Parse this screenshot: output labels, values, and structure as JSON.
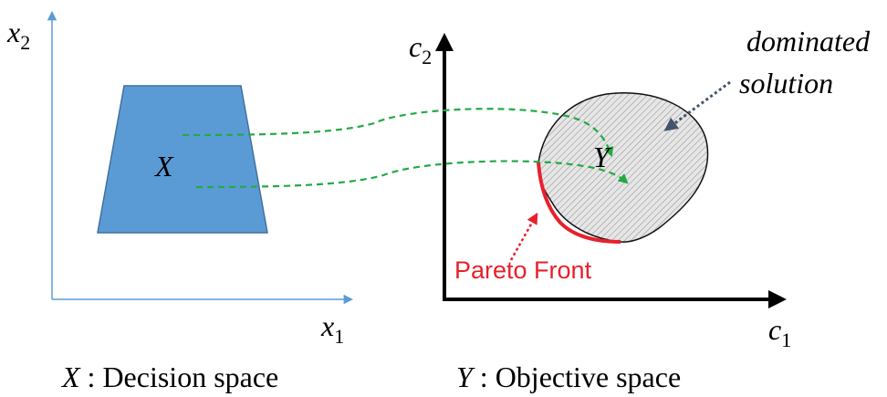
{
  "decision_space": {
    "axis_x": "x",
    "axis_x_sub": "1",
    "axis_y": "x",
    "axis_y_sub": "2",
    "set_label": "X",
    "caption_var": "X",
    "caption_text": " : Decision space",
    "axis_color": "#5b9bd5",
    "fill_color": "#5b9bd5"
  },
  "objective_space": {
    "axis_x": "c",
    "axis_x_sub": "1",
    "axis_y": "c",
    "axis_y_sub": "2",
    "set_label": "Y",
    "caption_var": "Y",
    "caption_text": " : Objective space",
    "axis_color": "#000000"
  },
  "annotations": {
    "dominated_line1": "dominated",
    "dominated_line2": "solution",
    "pareto_front": "Pareto Front",
    "mapping_color": "#22aa44",
    "pareto_color": "#e8202a",
    "dominated_arrow_color": "#44546a"
  }
}
